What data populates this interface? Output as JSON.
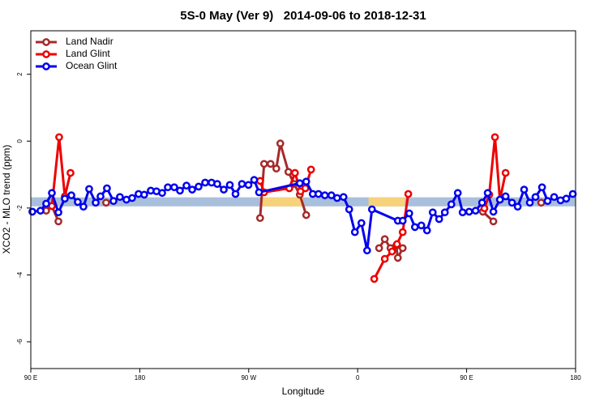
{
  "chart_data": {
    "type": "line",
    "title": "5S-0 May (Ver 9)   2014-09-06 to 2018-12-31",
    "xlabel": "Longitude",
    "ylabel": "XCO2 - MLO trend (ppm)",
    "xlim": [
      90,
      540
    ],
    "ylim": [
      -6.8,
      3.3
    ],
    "xticks": [
      {
        "value": 90,
        "label": "90 E"
      },
      {
        "value": 180,
        "label": "180"
      },
      {
        "value": 270,
        "label": "90 W"
      },
      {
        "value": 360,
        "label": "0"
      },
      {
        "value": 450,
        "label": "90 E"
      },
      {
        "value": 540,
        "label": "180"
      }
    ],
    "yticks": [
      -6,
      -4,
      -2,
      0,
      2
    ],
    "legend": "top-left",
    "bands": [
      {
        "color": "#a9bfdc",
        "xlim": [
          90,
          540
        ],
        "ylim": [
          -1.95,
          -1.68
        ]
      },
      {
        "color": "#f6d27a",
        "xlim": [
          280,
          315
        ],
        "ylim": [
          -1.95,
          -1.68
        ]
      },
      {
        "color": "#f6d27a",
        "xlim": [
          369,
          399
        ],
        "ylim": [
          -1.95,
          -1.68
        ]
      }
    ],
    "series": [
      {
        "name": "Land Nadir",
        "color": "#a52a2a",
        "x": [
          102.7,
          107.4,
          112.8,
          null,
          152.2,
          null,
          279.4,
          282.7,
          288.1,
          292.8,
          296.1,
          302.8,
          307.5,
          312.2,
          317.5,
          null,
          377.7,
          382.4,
          387.1,
          391.8,
          393.2,
          397.2,
          null,
          463.4,
          472.1,
          null,
          511.6
        ],
        "values": [
          -2.08,
          -1.94,
          -2.4,
          null,
          -1.84,
          null,
          -2.3,
          -0.68,
          -0.68,
          -0.82,
          -0.07,
          -0.92,
          -1.28,
          -1.6,
          -2.21,
          null,
          -3.2,
          -2.93,
          -3.2,
          -3.13,
          -3.49,
          -3.2,
          null,
          -2.11,
          -2.4,
          null,
          -1.84
        ]
      },
      {
        "name": "Land Glint",
        "color": "#ee0000",
        "x": [
          107.4,
          113.4,
          118.1,
          122.8,
          null,
          279.4,
          282.7,
          303.5,
          308.2,
          312.8,
          316.8,
          321.5,
          null,
          373.7,
          382.4,
          388.4,
          392.5,
          397.2,
          401.8,
          null,
          464.7,
          468.7,
          473.4,
          477.5,
          482.2
        ],
        "values": [
          -1.94,
          0.12,
          -1.65,
          -0.95,
          null,
          -1.19,
          -1.53,
          -1.41,
          -0.95,
          -1.5,
          -1.41,
          -0.85,
          null,
          -4.12,
          -3.52,
          -3.3,
          -3.08,
          -2.72,
          -1.58,
          null,
          -2.01,
          -1.6,
          0.12,
          -1.75,
          -0.95
        ]
      },
      {
        "name": "Ocean Glint",
        "color": "#0000ee",
        "x": [
          91.3,
          98.0,
          102.7,
          107.4,
          112.8,
          118.1,
          123.5,
          128.8,
          133.5,
          138.2,
          143.6,
          147.6,
          152.9,
          158.3,
          163.6,
          169.0,
          173.7,
          179.0,
          183.7,
          189.1,
          193.8,
          198.5,
          203.2,
          208.5,
          213.2,
          218.6,
          223.3,
          228.6,
          234.0,
          239.3,
          244.0,
          249.4,
          254.4,
          259.1,
          264.4,
          269.8,
          274.5,
          278.5,
          312.2,
          317.5,
          322.9,
          327.6,
          332.9,
          338.3,
          343.0,
          348.3,
          353.0,
          357.7,
          363.1,
          367.8,
          371.8,
          393.2,
          397.2,
          402.6,
          407.3,
          412.6,
          417.3,
          422.0,
          427.3,
          432.0,
          437.4,
          442.7,
          446.7,
          452.1,
          457.4,
          462.8,
          467.4,
          472.1,
          477.5,
          482.2,
          487.5,
          492.2,
          497.5,
          502.2,
          506.9,
          512.3,
          516.9,
          522.3,
          527.6,
          532.3,
          537.7
        ],
        "values": [
          -2.11,
          -2.08,
          -1.87,
          -1.55,
          -2.13,
          -1.72,
          -1.62,
          -1.82,
          -1.96,
          -1.43,
          -1.84,
          -1.65,
          -1.41,
          -1.79,
          -1.67,
          -1.75,
          -1.7,
          -1.58,
          -1.6,
          -1.48,
          -1.5,
          -1.55,
          -1.38,
          -1.38,
          -1.48,
          -1.33,
          -1.45,
          -1.36,
          -1.24,
          -1.24,
          -1.28,
          -1.45,
          -1.31,
          -1.58,
          -1.28,
          -1.31,
          -1.16,
          -1.53,
          -1.26,
          -1.21,
          -1.58,
          -1.58,
          -1.62,
          -1.62,
          -1.7,
          -1.67,
          -2.04,
          -2.72,
          -2.45,
          -3.27,
          -2.04,
          -2.38,
          -2.38,
          -2.16,
          -2.57,
          -2.52,
          -2.67,
          -2.13,
          -2.33,
          -2.13,
          -1.89,
          -1.55,
          -2.13,
          -2.11,
          -2.08,
          -1.84,
          -1.55,
          -2.11,
          -1.75,
          -1.65,
          -1.84,
          -1.96,
          -1.45,
          -1.84,
          -1.67,
          -1.38,
          -1.79,
          -1.67,
          -1.77,
          -1.72,
          -1.58
        ]
      }
    ]
  }
}
